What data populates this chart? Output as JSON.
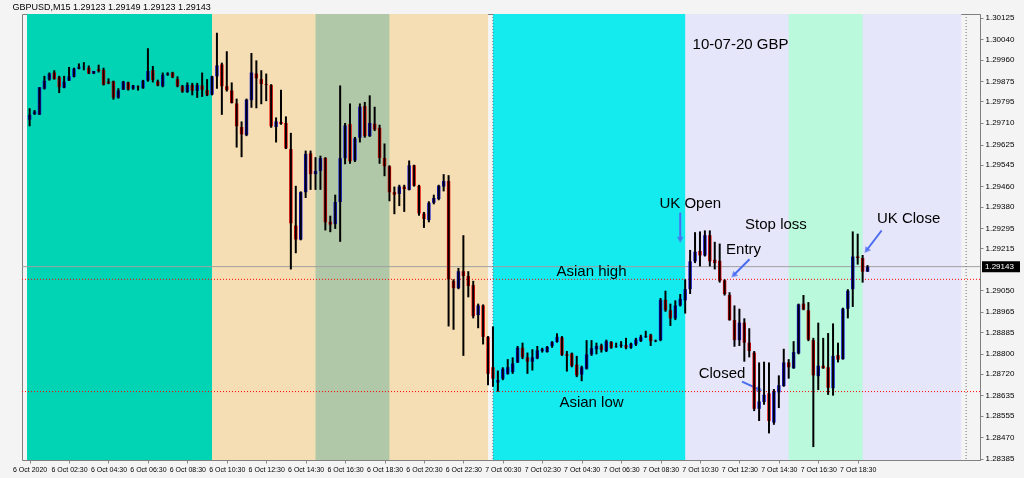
{
  "chart_data": {
    "type": "candlestick",
    "title": "GBPUSD,M15  1.29123 1.29149 1.29123 1.29143",
    "annotations": [
      "10-07-20  GBP",
      {
        "text": "UK Open",
        "x": "2020-10-07T09:30",
        "y": 1.29222
      },
      "Stop loss",
      {
        "text": "Entry",
        "x": "2020-10-07T12:00",
        "y": 1.29093
      },
      {
        "text": "Asian high",
        "x": "2020-10-07T05:00",
        "y": 1.29093
      },
      {
        "text": "Asian low",
        "x": "2020-10-07T05:00",
        "y": 1.2865
      },
      {
        "text": "Closed",
        "x": "2020-10-07T13:45",
        "y": 1.2865
      },
      {
        "text": "UK Close",
        "x": "2020-10-07T18:45",
        "y": 1.29187
      }
    ],
    "x": [
      "2020-10-06T00:30",
      "2020-10-06T00:45",
      "2020-10-06T01:00",
      "2020-10-06T01:15",
      "2020-10-06T01:30",
      "2020-10-06T01:45",
      "2020-10-06T02:00",
      "2020-10-06T02:15",
      "2020-10-06T02:30",
      "2020-10-06T02:45",
      "2020-10-06T03:00",
      "2020-10-06T03:15",
      "2020-10-06T03:30",
      "2020-10-06T03:45",
      "2020-10-06T04:00",
      "2020-10-06T04:15",
      "2020-10-06T04:30",
      "2020-10-06T04:45",
      "2020-10-06T05:00",
      "2020-10-06T05:15",
      "2020-10-06T05:30",
      "2020-10-06T05:45",
      "2020-10-06T06:00",
      "2020-10-06T06:15",
      "2020-10-06T06:30",
      "2020-10-06T06:45",
      "2020-10-06T07:00",
      "2020-10-06T07:15",
      "2020-10-06T07:30",
      "2020-10-06T07:45",
      "2020-10-06T08:00",
      "2020-10-06T08:15",
      "2020-10-06T08:30",
      "2020-10-06T08:45",
      "2020-10-06T09:00",
      "2020-10-06T09:15",
      "2020-10-06T09:30",
      "2020-10-06T09:45",
      "2020-10-06T10:00",
      "2020-10-06T10:15",
      "2020-10-06T10:30",
      "2020-10-06T10:45",
      "2020-10-06T11:00",
      "2020-10-06T11:15",
      "2020-10-06T11:30",
      "2020-10-06T11:45",
      "2020-10-06T12:00",
      "2020-10-06T12:15",
      "2020-10-06T12:30",
      "2020-10-06T12:45",
      "2020-10-06T13:00",
      "2020-10-06T13:15",
      "2020-10-06T13:30",
      "2020-10-06T13:45",
      "2020-10-06T14:00",
      "2020-10-06T14:15",
      "2020-10-06T14:30",
      "2020-10-06T14:45",
      "2020-10-06T15:00",
      "2020-10-06T15:15",
      "2020-10-06T15:30",
      "2020-10-06T15:45",
      "2020-10-06T16:00",
      "2020-10-06T16:15",
      "2020-10-06T16:30",
      "2020-10-06T16:45",
      "2020-10-06T17:00",
      "2020-10-06T17:15",
      "2020-10-06T17:30",
      "2020-10-06T17:45",
      "2020-10-06T18:00",
      "2020-10-06T18:15",
      "2020-10-06T18:30",
      "2020-10-06T18:45",
      "2020-10-06T19:00",
      "2020-10-06T19:15",
      "2020-10-06T19:30",
      "2020-10-06T19:45",
      "2020-10-06T20:00",
      "2020-10-06T20:15",
      "2020-10-06T20:30",
      "2020-10-06T20:45",
      "2020-10-06T21:00",
      "2020-10-06T21:15",
      "2020-10-06T21:30",
      "2020-10-06T21:45",
      "2020-10-06T22:00",
      "2020-10-06T22:15",
      "2020-10-06T22:30",
      "2020-10-06T22:45",
      "2020-10-06T23:00",
      "2020-10-06T23:15",
      "2020-10-06T23:30",
      "2020-10-06T23:45",
      "2020-10-07T00:00",
      "2020-10-07T00:15",
      "2020-10-07T00:30",
      "2020-10-07T00:45",
      "2020-10-07T01:00",
      "2020-10-07T01:15",
      "2020-10-07T01:30",
      "2020-10-07T01:45",
      "2020-10-07T02:00",
      "2020-10-07T02:15",
      "2020-10-07T02:30",
      "2020-10-07T02:45",
      "2020-10-07T03:00",
      "2020-10-07T03:15",
      "2020-10-07T03:30",
      "2020-10-07T03:45",
      "2020-10-07T04:00",
      "2020-10-07T04:15",
      "2020-10-07T04:30",
      "2020-10-07T04:45",
      "2020-10-07T05:00",
      "2020-10-07T05:15",
      "2020-10-07T05:30",
      "2020-10-07T05:45",
      "2020-10-07T06:00",
      "2020-10-07T06:15",
      "2020-10-07T06:30",
      "2020-10-07T06:45",
      "2020-10-07T07:00",
      "2020-10-07T07:15",
      "2020-10-07T07:30",
      "2020-10-07T07:45",
      "2020-10-07T08:00",
      "2020-10-07T08:15",
      "2020-10-07T08:30",
      "2020-10-07T08:45",
      "2020-10-07T09:00",
      "2020-10-07T09:15",
      "2020-10-07T09:30",
      "2020-10-07T09:45",
      "2020-10-07T10:00",
      "2020-10-07T10:15",
      "2020-10-07T10:30",
      "2020-10-07T10:45",
      "2020-10-07T11:00",
      "2020-10-07T11:15",
      "2020-10-07T11:30",
      "2020-10-07T11:45",
      "2020-10-07T12:00",
      "2020-10-07T12:15",
      "2020-10-07T12:30",
      "2020-10-07T12:45",
      "2020-10-07T13:00",
      "2020-10-07T13:15",
      "2020-10-07T13:30",
      "2020-10-07T13:45",
      "2020-10-07T14:00",
      "2020-10-07T14:15",
      "2020-10-07T14:30",
      "2020-10-07T14:45",
      "2020-10-07T15:00",
      "2020-10-07T15:15",
      "2020-10-07T15:30",
      "2020-10-07T15:45",
      "2020-10-07T16:00",
      "2020-10-07T16:15",
      "2020-10-07T16:30",
      "2020-10-07T16:45",
      "2020-10-07T17:00",
      "2020-10-07T17:15",
      "2020-10-07T17:30",
      "2020-10-07T17:45",
      "2020-10-07T18:00",
      "2020-10-07T18:15",
      "2020-10-07T18:30",
      "2020-10-07T18:45",
      "2020-10-07T19:00"
    ],
    "ohlc": [
      [
        1.29723,
        1.29768,
        1.29697,
        1.29742
      ],
      [
        1.29745,
        1.29761,
        1.29742,
        1.29755
      ],
      [
        1.29742,
        1.29851,
        1.29742,
        1.29851
      ],
      [
        1.29845,
        1.29896,
        1.29842,
        1.29877
      ],
      [
        1.29881,
        1.29909,
        1.29877,
        1.29905
      ],
      [
        1.29909,
        1.29918,
        1.29881,
        1.29883
      ],
      [
        1.2989,
        1.29896,
        1.29828,
        1.29851
      ],
      [
        1.29849,
        1.29896,
        1.29847,
        1.29873
      ],
      [
        1.29877,
        1.29931,
        1.29876,
        1.29894
      ],
      [
        1.29892,
        1.29928,
        1.2989,
        1.29924
      ],
      [
        1.29924,
        1.29945,
        1.29922,
        1.29932
      ],
      [
        1.29932,
        1.2995,
        1.29918,
        1.29933
      ],
      [
        1.29928,
        1.29937,
        1.29903,
        1.29905
      ],
      [
        1.29905,
        1.29915,
        1.29903,
        1.29915
      ],
      [
        1.29922,
        1.2994,
        1.29909,
        1.29915
      ],
      [
        1.29919,
        1.29928,
        1.29858,
        1.29861
      ],
      [
        1.29873,
        1.29886,
        1.29863,
        1.29867
      ],
      [
        1.29874,
        1.29877,
        1.29802,
        1.2981
      ],
      [
        1.2981,
        1.29847,
        1.29806,
        1.29838
      ],
      [
        1.29842,
        1.29876,
        1.2984,
        1.29873
      ],
      [
        1.2987,
        1.29873,
        1.29838,
        1.29842
      ],
      [
        1.29845,
        1.2986,
        1.29841,
        1.29858
      ],
      [
        1.29854,
        1.29858,
        1.29838,
        1.29851
      ],
      [
        1.29847,
        1.2988,
        1.29845,
        1.29877
      ],
      [
        1.29877,
        1.30005,
        1.29873,
        1.29915
      ],
      [
        1.29918,
        1.29935,
        1.2987,
        1.2988
      ],
      [
        1.29874,
        1.29881,
        1.29855,
        1.29858
      ],
      [
        1.29855,
        1.29909,
        1.29851,
        1.299
      ],
      [
        1.299,
        1.2991,
        1.29896,
        1.29905
      ],
      [
        1.29909,
        1.29912,
        1.29887,
        1.2989
      ],
      [
        1.29883,
        1.29894,
        1.29851,
        1.29855
      ],
      [
        1.29855,
        1.2986,
        1.29829,
        1.29834
      ],
      [
        1.29832,
        1.2987,
        1.29829,
        1.2986
      ],
      [
        1.2986,
        1.29868,
        1.29819,
        1.29837
      ],
      [
        1.29837,
        1.29868,
        1.29809,
        1.2986
      ],
      [
        1.29858,
        1.29909,
        1.29813,
        1.29841
      ],
      [
        1.2984,
        1.29883,
        1.29816,
        1.29819
      ],
      [
        1.29822,
        1.29896,
        1.29819,
        1.29894
      ],
      [
        1.29894,
        1.30066,
        1.29845,
        1.29937
      ],
      [
        1.29941,
        1.29948,
        1.29742,
        1.29855
      ],
      [
        1.29855,
        1.29993,
        1.29834,
        1.2984
      ],
      [
        1.29838,
        1.2987,
        1.29787,
        1.29789
      ],
      [
        1.29787,
        1.29806,
        1.29613,
        1.29697
      ],
      [
        1.29694,
        1.29716,
        1.29575,
        1.29665
      ],
      [
        1.29662,
        1.29806,
        1.29658,
        1.29802
      ],
      [
        1.298,
        1.29986,
        1.2977,
        1.29909
      ],
      [
        1.29905,
        1.29957,
        1.29768,
        1.29886
      ],
      [
        1.29883,
        1.29918,
        1.29784,
        1.29864
      ],
      [
        1.29863,
        1.29905,
        1.29796,
        1.2986
      ],
      [
        1.2986,
        1.29863,
        1.29691,
        1.29697
      ],
      [
        1.29694,
        1.29732,
        1.29633,
        1.29716
      ],
      [
        1.29714,
        1.29841,
        1.29703,
        1.29706
      ],
      [
        1.2971,
        1.29736,
        1.29607,
        1.2961
      ],
      [
        1.29607,
        1.29671,
        1.29132,
        1.29314
      ],
      [
        1.29305,
        1.29462,
        1.29196,
        1.2925
      ],
      [
        1.2925,
        1.2944,
        1.29247,
        1.29437
      ],
      [
        1.29437,
        1.29601,
        1.29414,
        1.29588
      ],
      [
        1.2959,
        1.29601,
        1.29446,
        1.29508
      ],
      [
        1.29508,
        1.29575,
        1.29446,
        1.29521
      ],
      [
        1.29521,
        1.29581,
        1.29446,
        1.29571
      ],
      [
        1.29572,
        1.29575,
        1.29286,
        1.29318
      ],
      [
        1.2932,
        1.29344,
        1.29279,
        1.29309
      ],
      [
        1.29311,
        1.29427,
        1.29292,
        1.29398
      ],
      [
        1.29398,
        1.29858,
        1.29241,
        1.29571
      ],
      [
        1.29571,
        1.2971,
        1.29547,
        1.297
      ],
      [
        1.29706,
        1.29787,
        1.29549,
        1.29559
      ],
      [
        1.29562,
        1.29655,
        1.29556,
        1.29649
      ],
      [
        1.29652,
        1.29787,
        1.29633,
        1.29774
      ],
      [
        1.29777,
        1.29793,
        1.29652,
        1.29658
      ],
      [
        1.29658,
        1.29819,
        1.29655,
        1.2971
      ],
      [
        1.29707,
        1.29774,
        1.29678,
        1.29684
      ],
      [
        1.29691,
        1.29703,
        1.29549,
        1.29572
      ],
      [
        1.29572,
        1.29629,
        1.295,
        1.29539
      ],
      [
        1.29539,
        1.29543,
        1.29401,
        1.29436
      ],
      [
        1.29437,
        1.29459,
        1.2935,
        1.29427
      ],
      [
        1.2943,
        1.29466,
        1.29382,
        1.29459
      ],
      [
        1.29459,
        1.29466,
        1.29359,
        1.29449
      ],
      [
        1.29446,
        1.29562,
        1.29444,
        1.29543
      ],
      [
        1.29543,
        1.29545,
        1.29459,
        1.29462
      ],
      [
        1.29462,
        1.29466,
        1.29344,
        1.29353
      ],
      [
        1.29353,
        1.29359,
        1.29296,
        1.29331
      ],
      [
        1.29327,
        1.29401,
        1.29318,
        1.29395
      ],
      [
        1.29395,
        1.29427,
        1.29389,
        1.29414
      ],
      [
        1.2941,
        1.29466,
        1.29405,
        1.29462
      ],
      [
        1.29459,
        1.29508,
        1.2944,
        1.29481
      ],
      [
        1.29481,
        1.29504,
        1.28907,
        1.29093
      ],
      [
        1.29087,
        1.29093,
        1.28894,
        1.29058
      ],
      [
        1.29058,
        1.29138,
        1.29054,
        1.29125
      ],
      [
        1.29125,
        1.29267,
        1.28791,
        1.29106
      ],
      [
        1.29106,
        1.29125,
        1.29022,
        1.29067
      ],
      [
        1.2907,
        1.29087,
        1.28939,
        1.28948
      ],
      [
        1.28952,
        1.28997,
        1.289,
        1.2899
      ],
      [
        1.2899,
        1.28994,
        1.28836,
        1.28866
      ],
      [
        1.28866,
        1.28869,
        1.28675,
        1.2872
      ],
      [
        1.28746,
        1.28907,
        1.28669,
        1.28701
      ],
      [
        1.28686,
        1.28733,
        1.2865,
        1.28695
      ],
      [
        1.28701,
        1.28746,
        1.28695,
        1.2874
      ],
      [
        1.2872,
        1.28778,
        1.28717,
        1.28746
      ],
      [
        1.28727,
        1.28785,
        1.2872,
        1.28761
      ],
      [
        1.28765,
        1.2883,
        1.28763,
        1.28823
      ],
      [
        1.28823,
        1.28843,
        1.28778,
        1.28785
      ],
      [
        1.28785,
        1.28804,
        1.2872,
        1.28768
      ],
      [
        1.28768,
        1.28817,
        1.28733,
        1.28785
      ],
      [
        1.28781,
        1.2883,
        1.28778,
        1.28813
      ],
      [
        1.2881,
        1.28823,
        1.28804,
        1.28817
      ],
      [
        1.28806,
        1.2883,
        1.28804,
        1.28826
      ],
      [
        1.2883,
        1.28849,
        1.28823,
        1.28846
      ],
      [
        1.28846,
        1.2888,
        1.28843,
        1.28866
      ],
      [
        1.28864,
        1.28869,
        1.28791,
        1.28794
      ],
      [
        1.28797,
        1.2881,
        1.28729,
        1.28791
      ],
      [
        1.288,
        1.28804,
        1.28746,
        1.28752
      ],
      [
        1.28756,
        1.28791,
        1.28707,
        1.28714
      ],
      [
        1.28717,
        1.28752,
        1.28691,
        1.28746
      ],
      [
        1.2874,
        1.28853,
        1.28737,
        1.28797
      ],
      [
        1.28797,
        1.28853,
        1.28791,
        1.28821
      ],
      [
        1.28817,
        1.28843,
        1.28797,
        1.2883
      ],
      [
        1.28832,
        1.28839,
        1.28804,
        1.28814
      ],
      [
        1.2881,
        1.28855,
        1.28806,
        1.28849
      ],
      [
        1.28846,
        1.28849,
        1.28819,
        1.28823
      ],
      [
        1.28828,
        1.28843,
        1.28823,
        1.2883
      ],
      [
        1.2883,
        1.28849,
        1.28823,
        1.28835
      ],
      [
        1.28833,
        1.28862,
        1.28817,
        1.28823
      ],
      [
        1.28823,
        1.28843,
        1.28819,
        1.28839
      ],
      [
        1.28836,
        1.28862,
        1.2883,
        1.28855
      ],
      [
        1.28849,
        1.28874,
        1.28846,
        1.28866
      ],
      [
        1.28866,
        1.2889,
        1.28862,
        1.28869
      ],
      [
        1.28874,
        1.28878,
        1.2883,
        1.28849
      ],
      [
        1.28849,
        1.28855,
        1.28845,
        1.28851
      ],
      [
        1.28853,
        1.29019,
        1.28849,
        1.29012
      ],
      [
        1.29012,
        1.29048,
        1.28965,
        1.28971
      ],
      [
        1.28971,
        1.28997,
        1.28909,
        1.28939
      ],
      [
        1.28939,
        1.2901,
        1.28932,
        1.2899
      ],
      [
        1.2899,
        1.29035,
        1.28986,
        1.29016
      ],
      [
        1.2901,
        1.29093,
        1.28958,
        1.29054
      ],
      [
        1.29054,
        1.29209,
        1.29035,
        1.29164
      ],
      [
        1.29164,
        1.29279,
        1.29157,
        1.29202
      ],
      [
        1.29205,
        1.29282,
        1.29144,
        1.29187
      ],
      [
        1.29187,
        1.29286,
        1.29183,
        1.29267
      ],
      [
        1.29267,
        1.29286,
        1.29144,
        1.29164
      ],
      [
        1.2917,
        1.29241,
        1.29132,
        1.29157
      ],
      [
        1.29166,
        1.29234,
        1.2908,
        1.29087
      ],
      [
        1.29089,
        1.29093,
        1.29029,
        1.29035
      ],
      [
        1.29031,
        1.29042,
        1.2893,
        1.28932
      ],
      [
        1.28932,
        1.2899,
        1.28827,
        1.28853
      ],
      [
        1.28853,
        1.28977,
        1.2883,
        1.28922
      ],
      [
        1.28922,
        1.28939,
        1.28768,
        1.28843
      ],
      [
        1.28843,
        1.289,
        1.28785,
        1.2881
      ],
      [
        1.28804,
        1.2881,
        1.28573,
        1.28582
      ],
      [
        1.28582,
        1.28765,
        1.28534,
        1.28611
      ],
      [
        1.28609,
        1.28768,
        1.28598,
        1.28637
      ],
      [
        1.28643,
        1.28765,
        1.28485,
        1.28534
      ],
      [
        1.28528,
        1.2866,
        1.28519,
        1.2865
      ],
      [
        1.28647,
        1.28714,
        1.28585,
        1.28675
      ],
      [
        1.28672,
        1.28819,
        1.28669,
        1.28765
      ],
      [
        1.28765,
        1.28778,
        1.28701,
        1.28746
      ],
      [
        1.28742,
        1.28849,
        1.2874,
        1.28806
      ],
      [
        1.28801,
        1.28997,
        1.28797,
        1.28994
      ],
      [
        1.28997,
        1.29031,
        1.28971,
        1.28974
      ],
      [
        1.28971,
        1.29003,
        1.28849,
        1.28855
      ],
      [
        1.28853,
        1.28862,
        1.28431,
        1.28714
      ],
      [
        1.28711,
        1.28922,
        1.28656,
        1.28752
      ],
      [
        1.28752,
        1.28862,
        1.2874,
        1.28742
      ],
      [
        1.28746,
        1.28881,
        1.28637,
        1.28665
      ],
      [
        1.28663,
        1.28919,
        1.28634,
        1.28791
      ],
      [
        1.28794,
        1.28843,
        1.28765,
        1.28776
      ],
      [
        1.28778,
        1.28981,
        1.28776,
        1.28977
      ],
      [
        1.28977,
        1.29054,
        1.28939,
        1.29048
      ],
      [
        1.29054,
        1.29282,
        1.28984,
        1.29183
      ],
      [
        1.29183,
        1.29273,
        1.29151,
        1.29177
      ],
      [
        1.29177,
        1.29189,
        1.2908,
        1.29123
      ],
      [
        1.29123,
        1.29149,
        1.29123,
        1.29143
      ]
    ],
    "xlim": [
      "2020-10-06T00:22",
      "2020-10-08T00:27"
    ],
    "ylim": [
      1.2838,
      1.3014
    ],
    "xticks": [
      {
        "value": "2020-10-06T00:30",
        "label": "6 Oct 2020"
      },
      {
        "value": "2020-10-06T02:30",
        "label": "6 Oct 02:30"
      },
      {
        "value": "2020-10-06T04:30",
        "label": "6 Oct 04:30"
      },
      {
        "value": "2020-10-06T06:30",
        "label": "6 Oct 06:30"
      },
      {
        "value": "2020-10-06T08:30",
        "label": "6 Oct 08:30"
      },
      {
        "value": "2020-10-06T10:30",
        "label": "6 Oct 10:30"
      },
      {
        "value": "2020-10-06T12:30",
        "label": "6 Oct 12:30"
      },
      {
        "value": "2020-10-06T14:30",
        "label": "6 Oct 14:30"
      },
      {
        "value": "2020-10-06T16:30",
        "label": "6 Oct 16:30"
      },
      {
        "value": "2020-10-06T18:30",
        "label": "6 Oct 18:30"
      },
      {
        "value": "2020-10-06T20:30",
        "label": "6 Oct 20:30"
      },
      {
        "value": "2020-10-06T22:30",
        "label": "6 Oct 22:30"
      },
      {
        "value": "2020-10-07T00:30",
        "label": "7 Oct 00:30"
      },
      {
        "value": "2020-10-07T02:30",
        "label": "7 Oct 02:30"
      },
      {
        "value": "2020-10-07T04:30",
        "label": "7 Oct 04:30"
      },
      {
        "value": "2020-10-07T06:30",
        "label": "7 Oct 06:30"
      },
      {
        "value": "2020-10-07T08:30",
        "label": "7 Oct 08:30"
      },
      {
        "value": "2020-10-07T10:30",
        "label": "7 Oct 10:30"
      },
      {
        "value": "2020-10-07T12:30",
        "label": "7 Oct 12:30"
      },
      {
        "value": "2020-10-07T14:30",
        "label": "7 Oct 14:30"
      },
      {
        "value": "2020-10-07T16:30",
        "label": "7 Oct 16:30"
      },
      {
        "value": "2020-10-07T18:30",
        "label": "7 Oct 18:30"
      }
    ],
    "yticks": [
      1.30125,
      {
        "value": 1.3004,
        "label": "1.30040"
      },
      {
        "value": 1.2996,
        "label": "1.29960"
      },
      1.29875,
      1.29795,
      {
        "value": 1.2971,
        "label": "1.29710"
      },
      1.29625,
      1.29545,
      {
        "value": 1.2946,
        "label": "1.29460"
      },
      {
        "value": 1.2938,
        "label": "1.29380"
      },
      1.29295,
      1.29215,
      {
        "value": 1.2905,
        "label": "1.29050"
      },
      1.28965,
      1.28885,
      {
        "value": 1.288,
        "label": "1.28800"
      },
      {
        "value": 1.2872,
        "label": "1.28720"
      },
      1.28635,
      1.28555,
      {
        "value": 1.2847,
        "label": "1.28470"
      },
      1.28385
    ],
    "ref_lines": [
      {
        "axis": "y",
        "value": 1.29143,
        "label": "1.29143",
        "color": "#a0a0a0",
        "line_style": "solid"
      },
      {
        "axis": "y",
        "value": 1.29093,
        "color": "#ff0000",
        "line_style": "dotted"
      },
      {
        "axis": "y",
        "value": 1.2865,
        "color": "#ff0000",
        "line_style": "dotted"
      },
      {
        "axis": "x",
        "value": "2020-10-07T00:00",
        "color": "#707070",
        "line_style": "dotted"
      },
      {
        "axis": "x",
        "value": "2020-10-08T00:00",
        "color": "#707070",
        "line_style": "dotted"
      }
    ],
    "bands": [
      {
        "axis": "x",
        "from": "2020-10-06T00:22",
        "to": "2020-10-06T23:45",
        "color": "#f5deb3"
      },
      {
        "axis": "x",
        "from": "2020-10-07T00:00",
        "to": "2020-10-07T23:45",
        "color": "#e6e6fa"
      },
      {
        "axis": "x",
        "from": "2020-10-06T00:22",
        "to": "2020-10-06T09:45",
        "color": "#00d4b4"
      },
      {
        "axis": "x",
        "from": "2020-10-06T15:00",
        "to": "2020-10-06T18:45",
        "color": "#b0c8a8"
      },
      {
        "axis": "x",
        "from": "2020-10-07T00:00",
        "to": "2020-10-07T09:45",
        "color": "#14ebef"
      },
      {
        "axis": "x",
        "from": "2020-10-07T15:00",
        "to": "2020-10-07T18:45",
        "color": "#baf9dc"
      }
    ]
  }
}
